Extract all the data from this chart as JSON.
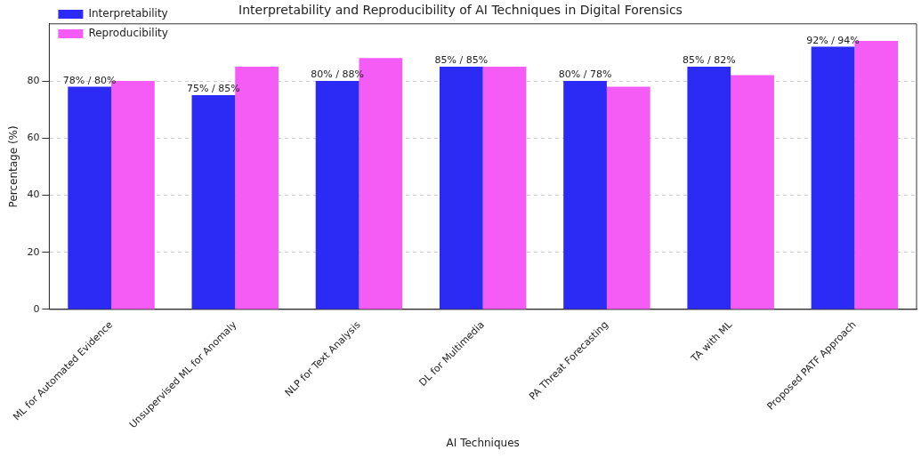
{
  "chart_data": {
    "type": "bar",
    "title": "Interpretability and Reproducibility of AI Techniques in Digital Forensics",
    "xlabel": "AI Techniques",
    "ylabel": "Percentage (%)",
    "categories": [
      "ML for Automated Evidence",
      "Unsupervised ML for Anomaly",
      "NLP for Text Analysis",
      "DL for Multimedia",
      "PA Threat Forecasting",
      "TA with ML",
      "Proposed PATF Approach"
    ],
    "series": [
      {
        "name": "Interpretability",
        "color": "#2b2bf5",
        "values": [
          78,
          75,
          80,
          85,
          80,
          85,
          92
        ],
        "value_labels": [
          "78% / 80%",
          "75% / 85%",
          "80% / 88%",
          "85% / 85%",
          "80% / 78%",
          "85% / 82%",
          "92% / 94%"
        ]
      },
      {
        "name": "Reproducibility",
        "color": "#f55cf5",
        "values": [
          80,
          85,
          88,
          85,
          78,
          82,
          94
        ]
      }
    ],
    "ylim": [
      0,
      100
    ],
    "yticks": [
      0,
      20,
      40,
      60,
      80
    ],
    "grid": "y",
    "legend": "top left"
  }
}
